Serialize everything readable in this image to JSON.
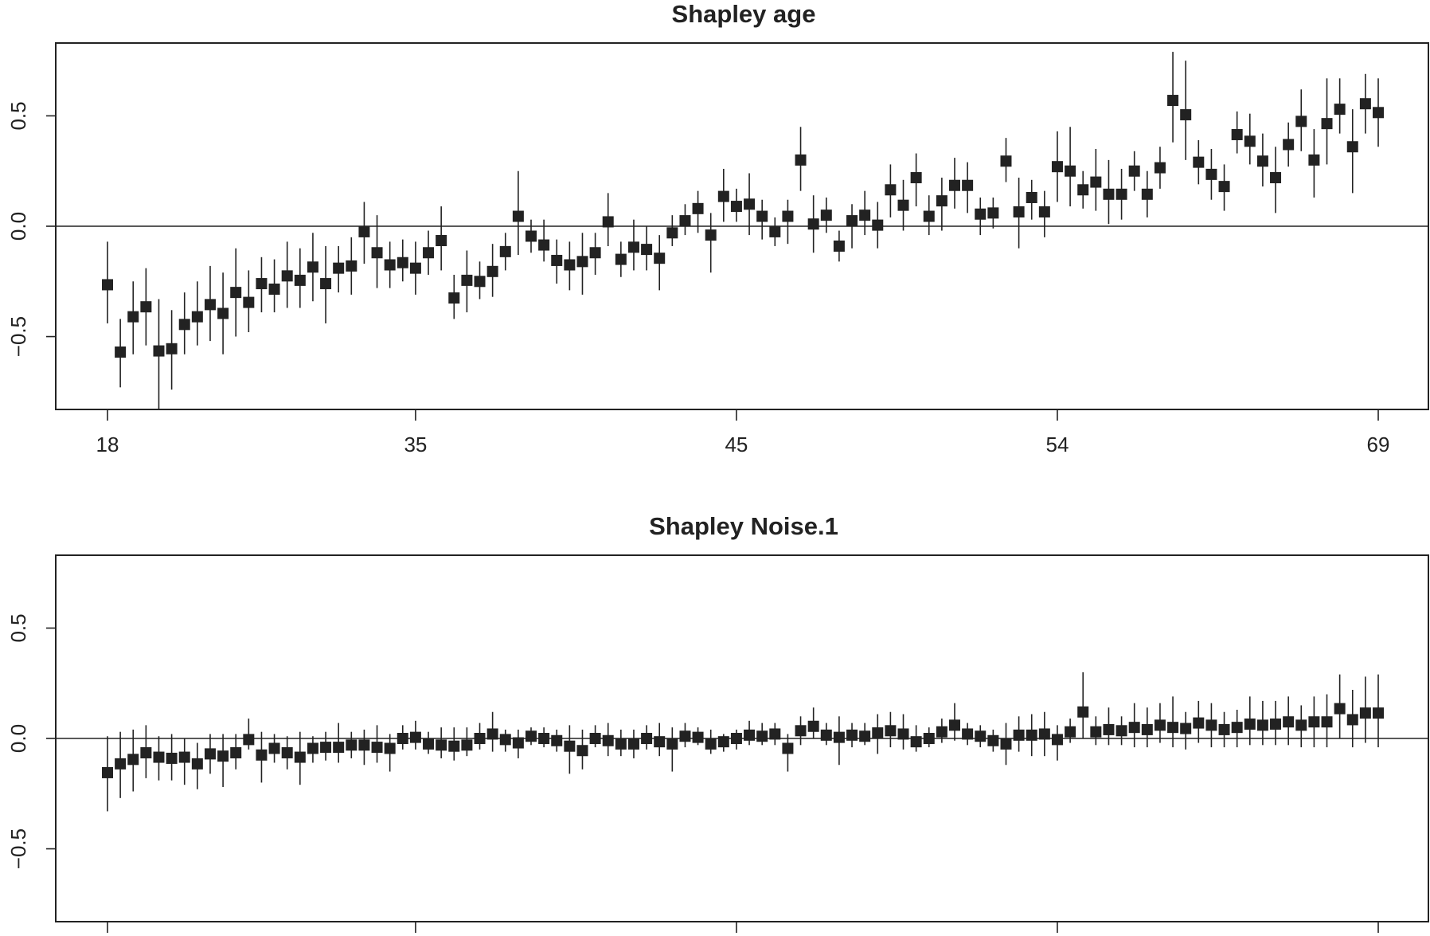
{
  "colors": {
    "ink": "#222222",
    "background": "#ffffff"
  },
  "chart_data": [
    {
      "type": "scatter",
      "title": "Shapley age",
      "xlabel": "",
      "ylabel": "",
      "ylim": [
        -0.83,
        0.83
      ],
      "yticks": [
        -0.5,
        0.0,
        0.5
      ],
      "ytick_labels": [
        "−0.5",
        "0.0",
        "0.5"
      ],
      "xticks": [
        0,
        24,
        49,
        74,
        99
      ],
      "xtick_labels": [
        "18",
        "35",
        "45",
        "54",
        "69"
      ],
      "reference_line": 0,
      "grid": false,
      "x": [
        0,
        1,
        2,
        3,
        4,
        5,
        6,
        7,
        8,
        9,
        10,
        11,
        12,
        13,
        14,
        15,
        16,
        17,
        18,
        19,
        20,
        21,
        22,
        23,
        24,
        25,
        26,
        27,
        28,
        29,
        30,
        31,
        32,
        33,
        34,
        35,
        36,
        37,
        38,
        39,
        40,
        41,
        42,
        43,
        44,
        45,
        46,
        47,
        48,
        49,
        50,
        51,
        52,
        53,
        54,
        55,
        56,
        57,
        58,
        59,
        60,
        61,
        62,
        63,
        64,
        65,
        66,
        67,
        68,
        69,
        70,
        71,
        72,
        73,
        74,
        75,
        76,
        77,
        78,
        79,
        80,
        81,
        82,
        83,
        84,
        85,
        86,
        87,
        88,
        89,
        90,
        91,
        92,
        93,
        94,
        95,
        96,
        97,
        98,
        99
      ],
      "series": [
        {
          "values": [
            -0.265,
            -0.57,
            -0.41,
            -0.365,
            -0.565,
            -0.555,
            -0.445,
            -0.41,
            -0.355,
            -0.395,
            -0.3,
            -0.345,
            -0.26,
            -0.285,
            -0.225,
            -0.245,
            -0.185,
            -0.26,
            -0.19,
            -0.18,
            -0.025,
            -0.12,
            -0.175,
            -0.165,
            -0.19,
            -0.12,
            -0.065,
            -0.325,
            -0.245,
            -0.25,
            -0.205,
            -0.115,
            0.045,
            -0.045,
            -0.085,
            -0.155,
            -0.175,
            -0.16,
            -0.12,
            0.02,
            -0.15,
            -0.095,
            -0.105,
            -0.145,
            -0.03,
            0.025,
            0.08,
            -0.04,
            0.135,
            0.09,
            0.1,
            0.045,
            -0.025,
            0.045,
            0.3,
            0.01,
            0.05,
            -0.09,
            0.025,
            0.05,
            0.005,
            0.165,
            0.095,
            0.22,
            0.045,
            0.115,
            0.185,
            0.185,
            0.055,
            0.06,
            0.295,
            0.065,
            0.13,
            0.065,
            0.27,
            0.25,
            0.165,
            0.2,
            0.145,
            0.145,
            0.25,
            0.145,
            0.265,
            0.57,
            0.505,
            0.29,
            0.235,
            0.18,
            0.415,
            0.385,
            0.295,
            0.22,
            0.37,
            0.475,
            0.3,
            0.465,
            0.53,
            0.36,
            0.555,
            0.515
          ],
          "lower": [
            -0.44,
            -0.73,
            -0.58,
            -0.54,
            -0.83,
            -0.74,
            -0.58,
            -0.54,
            -0.52,
            -0.58,
            -0.5,
            -0.48,
            -0.39,
            -0.39,
            -0.37,
            -0.37,
            -0.34,
            -0.44,
            -0.3,
            -0.31,
            -0.17,
            -0.28,
            -0.28,
            -0.25,
            -0.31,
            -0.22,
            -0.2,
            -0.42,
            -0.39,
            -0.33,
            -0.32,
            -0.2,
            -0.13,
            -0.12,
            -0.16,
            -0.26,
            -0.29,
            -0.31,
            -0.22,
            -0.09,
            -0.23,
            -0.2,
            -0.2,
            -0.29,
            -0.09,
            -0.04,
            -0.03,
            -0.21,
            0.02,
            0.02,
            -0.04,
            -0.06,
            -0.09,
            -0.08,
            0.16,
            -0.12,
            -0.03,
            -0.16,
            -0.1,
            -0.04,
            -0.1,
            0.04,
            -0.02,
            0.09,
            -0.04,
            -0.02,
            0.08,
            0.06,
            -0.04,
            -0.01,
            0.2,
            -0.1,
            0.03,
            -0.05,
            0.11,
            0.09,
            0.08,
            0.07,
            0.01,
            0.03,
            0.16,
            0.04,
            0.17,
            0.38,
            0.3,
            0.19,
            0.12,
            0.07,
            0.33,
            0.28,
            0.18,
            0.06,
            0.27,
            0.34,
            0.13,
            0.28,
            0.42,
            0.15,
            0.42,
            0.36
          ],
          "upper": [
            -0.07,
            -0.42,
            -0.25,
            -0.19,
            -0.33,
            -0.38,
            -0.3,
            -0.25,
            -0.18,
            -0.21,
            -0.1,
            -0.2,
            -0.14,
            -0.15,
            -0.07,
            -0.1,
            -0.03,
            -0.09,
            -0.09,
            -0.05,
            0.11,
            0.05,
            -0.07,
            -0.06,
            -0.07,
            -0.02,
            0.09,
            -0.22,
            -0.11,
            -0.16,
            -0.08,
            -0.03,
            0.25,
            0.03,
            0.03,
            -0.06,
            -0.07,
            -0.03,
            -0.03,
            0.15,
            -0.07,
            0.03,
            0.0,
            -0.04,
            0.05,
            0.1,
            0.16,
            0.06,
            0.26,
            0.17,
            0.24,
            0.12,
            0.04,
            0.12,
            0.45,
            0.14,
            0.13,
            -0.02,
            0.1,
            0.16,
            0.11,
            0.28,
            0.21,
            0.33,
            0.14,
            0.22,
            0.31,
            0.29,
            0.13,
            0.13,
            0.4,
            0.22,
            0.21,
            0.16,
            0.43,
            0.45,
            0.25,
            0.35,
            0.3,
            0.26,
            0.34,
            0.25,
            0.36,
            0.79,
            0.75,
            0.39,
            0.35,
            0.28,
            0.52,
            0.51,
            0.42,
            0.36,
            0.47,
            0.62,
            0.44,
            0.67,
            0.67,
            0.53,
            0.69,
            0.67
          ]
        }
      ]
    },
    {
      "type": "scatter",
      "title": "Shapley Noise.1",
      "xlabel": "",
      "ylabel": "",
      "ylim": [
        -0.83,
        0.83
      ],
      "yticks": [
        -0.5,
        0.0,
        0.5
      ],
      "ytick_labels": [
        "−0.5",
        "0.0",
        "0.5"
      ],
      "xticks": [
        0,
        24,
        49,
        74,
        99
      ],
      "xtick_labels": [],
      "reference_line": 0,
      "grid": false,
      "x": [
        0,
        1,
        2,
        3,
        4,
        5,
        6,
        7,
        8,
        9,
        10,
        11,
        12,
        13,
        14,
        15,
        16,
        17,
        18,
        19,
        20,
        21,
        22,
        23,
        24,
        25,
        26,
        27,
        28,
        29,
        30,
        31,
        32,
        33,
        34,
        35,
        36,
        37,
        38,
        39,
        40,
        41,
        42,
        43,
        44,
        45,
        46,
        47,
        48,
        49,
        50,
        51,
        52,
        53,
        54,
        55,
        56,
        57,
        58,
        59,
        60,
        61,
        62,
        63,
        64,
        65,
        66,
        67,
        68,
        69,
        70,
        71,
        72,
        73,
        74,
        75,
        76,
        77,
        78,
        79,
        80,
        81,
        82,
        83,
        84,
        85,
        86,
        87,
        88,
        89,
        90,
        91,
        92,
        93,
        94,
        95,
        96,
        97,
        98,
        99
      ],
      "series": [
        {
          "values": [
            -0.155,
            -0.115,
            -0.095,
            -0.065,
            -0.085,
            -0.09,
            -0.085,
            -0.115,
            -0.07,
            -0.08,
            -0.065,
            -0.005,
            -0.075,
            -0.045,
            -0.065,
            -0.085,
            -0.045,
            -0.04,
            -0.04,
            -0.03,
            -0.03,
            -0.04,
            -0.045,
            0.0,
            0.005,
            -0.025,
            -0.03,
            -0.035,
            -0.03,
            0.0,
            0.02,
            -0.005,
            -0.02,
            0.01,
            0.0,
            -0.01,
            -0.035,
            -0.055,
            0.0,
            -0.01,
            -0.025,
            -0.025,
            0.0,
            -0.015,
            -0.025,
            0.01,
            0.005,
            -0.025,
            -0.015,
            0.0,
            0.015,
            0.01,
            0.02,
            -0.045,
            0.035,
            0.055,
            0.015,
            0.005,
            0.015,
            0.01,
            0.025,
            0.035,
            0.02,
            -0.015,
            0.0,
            0.03,
            0.06,
            0.02,
            0.01,
            -0.01,
            -0.025,
            0.015,
            0.015,
            0.02,
            -0.005,
            0.03,
            0.12,
            0.03,
            0.04,
            0.035,
            0.05,
            0.04,
            0.06,
            0.05,
            0.045,
            0.07,
            0.06,
            0.04,
            0.05,
            0.065,
            0.06,
            0.065,
            0.075,
            0.06,
            0.075,
            0.075,
            0.135,
            0.085,
            0.115,
            0.115
          ],
          "lower": [
            -0.33,
            -0.27,
            -0.24,
            -0.18,
            -0.19,
            -0.19,
            -0.21,
            -0.23,
            -0.16,
            -0.22,
            -0.14,
            -0.05,
            -0.2,
            -0.11,
            -0.14,
            -0.21,
            -0.11,
            -0.1,
            -0.11,
            -0.09,
            -0.12,
            -0.11,
            -0.15,
            -0.05,
            -0.05,
            -0.07,
            -0.09,
            -0.1,
            -0.08,
            -0.05,
            -0.06,
            -0.06,
            -0.09,
            -0.03,
            -0.04,
            -0.06,
            -0.16,
            -0.14,
            -0.04,
            -0.08,
            -0.08,
            -0.09,
            -0.05,
            -0.08,
            -0.15,
            -0.04,
            -0.03,
            -0.07,
            -0.06,
            -0.05,
            -0.03,
            -0.03,
            -0.03,
            -0.15,
            -0.03,
            0.0,
            -0.03,
            -0.12,
            -0.04,
            -0.03,
            -0.07,
            -0.04,
            -0.05,
            -0.06,
            -0.04,
            -0.02,
            -0.01,
            -0.03,
            -0.04,
            -0.06,
            -0.12,
            -0.06,
            -0.08,
            -0.08,
            -0.1,
            -0.02,
            0.0,
            -0.03,
            -0.03,
            -0.03,
            -0.04,
            -0.04,
            -0.02,
            -0.04,
            -0.05,
            -0.02,
            -0.04,
            -0.04,
            -0.04,
            -0.03,
            -0.03,
            -0.03,
            -0.03,
            -0.04,
            -0.04,
            -0.04,
            0.0,
            -0.04,
            -0.02,
            -0.04
          ],
          "upper": [
            0.01,
            0.03,
            0.04,
            0.06,
            0.01,
            0.02,
            0.0,
            -0.02,
            0.02,
            0.02,
            0.02,
            0.09,
            0.03,
            0.02,
            0.01,
            0.03,
            0.01,
            0.03,
            0.07,
            0.03,
            0.04,
            0.06,
            0.02,
            0.06,
            0.08,
            0.03,
            0.05,
            0.05,
            0.05,
            0.07,
            0.12,
            0.04,
            0.04,
            0.05,
            0.05,
            0.04,
            0.06,
            0.04,
            0.06,
            0.07,
            0.04,
            0.04,
            0.06,
            0.07,
            0.05,
            0.07,
            0.05,
            0.04,
            0.02,
            0.04,
            0.08,
            0.07,
            0.07,
            0.02,
            0.1,
            0.14,
            0.07,
            0.1,
            0.07,
            0.07,
            0.11,
            0.12,
            0.11,
            0.06,
            0.05,
            0.09,
            0.16,
            0.07,
            0.06,
            0.04,
            0.07,
            0.1,
            0.11,
            0.12,
            0.06,
            0.09,
            0.3,
            0.1,
            0.14,
            0.1,
            0.16,
            0.14,
            0.16,
            0.19,
            0.12,
            0.17,
            0.16,
            0.12,
            0.13,
            0.19,
            0.17,
            0.17,
            0.19,
            0.15,
            0.19,
            0.2,
            0.29,
            0.22,
            0.28,
            0.29
          ]
        }
      ]
    }
  ]
}
